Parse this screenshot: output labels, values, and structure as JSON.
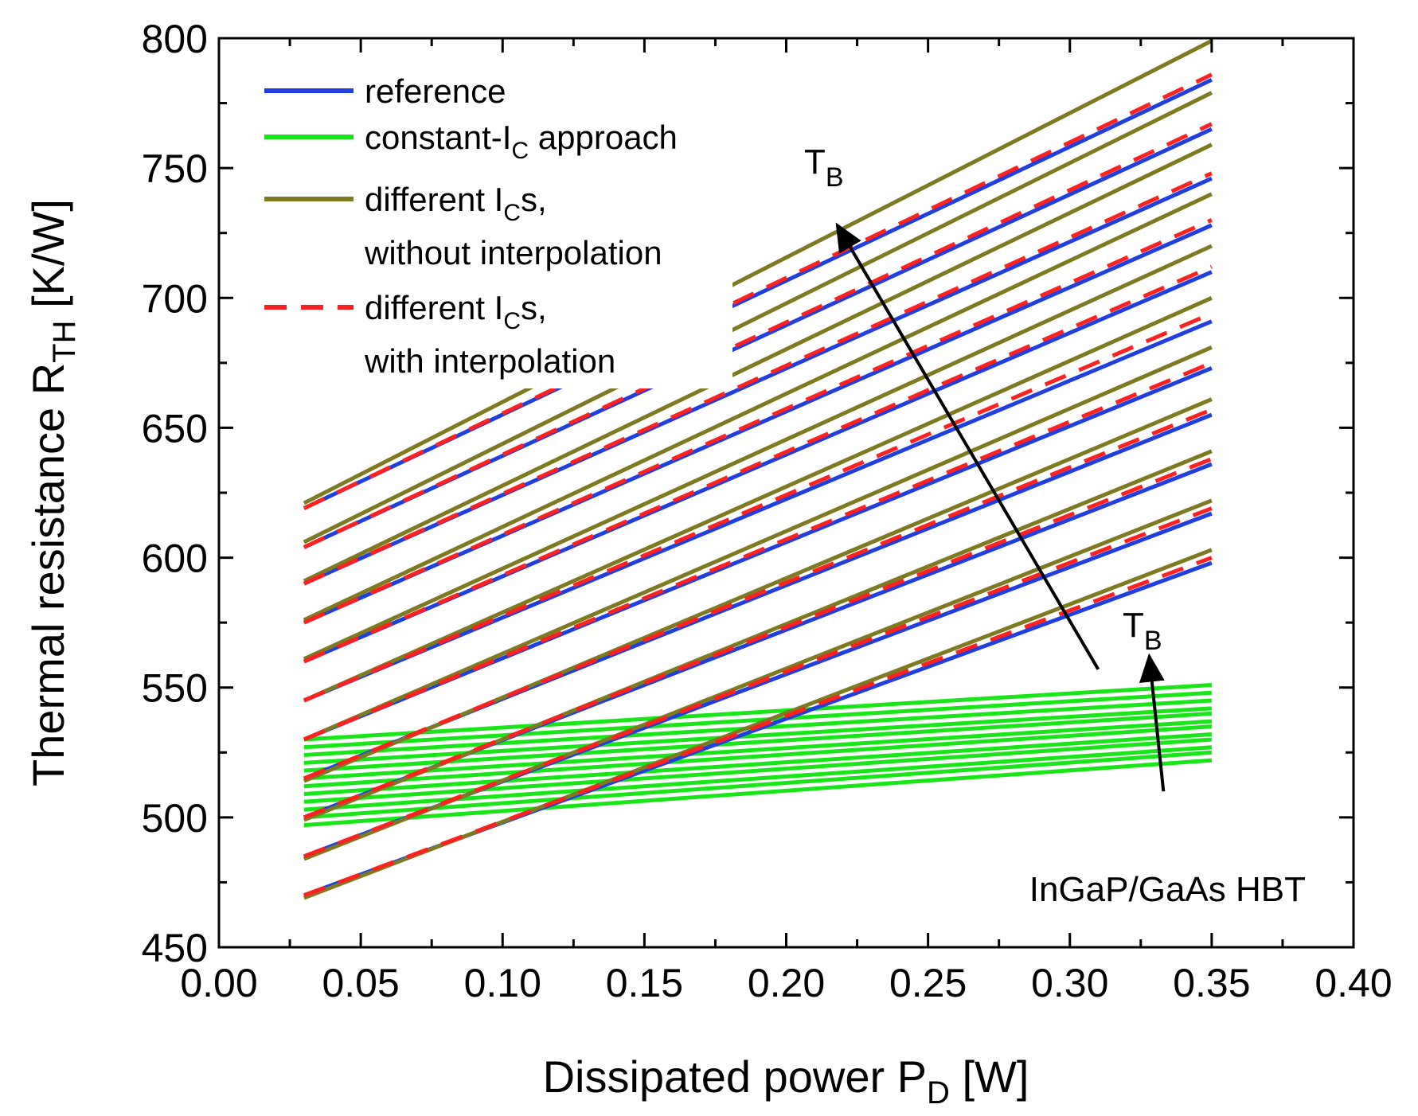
{
  "chart_data": {
    "type": "line",
    "title": "",
    "xlabel": {
      "main": "Dissipated power P",
      "sub": "D",
      "unit": " [W]"
    },
    "ylabel": {
      "main": "Thermal resistance R",
      "sub": "TH",
      "unit": " [K/W]"
    },
    "xlim": [
      0.0,
      0.4
    ],
    "ylim": [
      450,
      800
    ],
    "xticks": [
      0.0,
      0.05,
      0.1,
      0.15,
      0.2,
      0.25,
      0.3,
      0.35,
      0.4
    ],
    "xtick_labels": [
      "0.00",
      "0.05",
      "0.10",
      "0.15",
      "0.20",
      "0.25",
      "0.30",
      "0.35",
      "0.40"
    ],
    "yticks": [
      450,
      500,
      550,
      600,
      650,
      700,
      750,
      800
    ],
    "ytick_labels": [
      "450",
      "500",
      "550",
      "600",
      "650",
      "700",
      "750",
      "800"
    ],
    "grid": false,
    "x_range": [
      0.03,
      0.35
    ],
    "legend": {
      "position": "top-left",
      "entries": [
        {
          "series": "reference",
          "text": "reference",
          "sub": "",
          "after": "",
          "line2": ""
        },
        {
          "series": "constant",
          "text": "constant-I",
          "sub": "C",
          "after": " approach",
          "line2": ""
        },
        {
          "series": "no_interp",
          "text": "different I",
          "sub": "C",
          "after": "s,",
          "line2": "without interpolation"
        },
        {
          "series": "interp",
          "text": "different I",
          "sub": "C",
          "after": "s,",
          "line2": "with interpolation"
        }
      ]
    },
    "series": [
      {
        "name": "reference",
        "color": "#1f3fe0",
        "dash": "none",
        "lines": [
          [
            470,
            598
          ],
          [
            485,
            617
          ],
          [
            500,
            636
          ],
          [
            515,
            655
          ],
          [
            530,
            673
          ],
          [
            545,
            691
          ],
          [
            560,
            710
          ],
          [
            575,
            728
          ],
          [
            590,
            746
          ],
          [
            604,
            765
          ],
          [
            619,
            784
          ]
        ]
      },
      {
        "name": "constant-IC approach",
        "color": "#19e619",
        "dash": "none",
        "lines": [
          [
            497,
            522
          ],
          [
            500,
            525
          ],
          [
            503,
            527
          ],
          [
            506,
            530
          ],
          [
            509,
            532
          ],
          [
            512,
            535
          ],
          [
            515,
            537
          ],
          [
            518,
            540
          ],
          [
            521,
            542
          ],
          [
            524,
            545
          ],
          [
            527,
            548
          ],
          [
            530,
            551
          ]
        ]
      },
      {
        "name": "different ICs, without interpolation",
        "color": "#7d7a22",
        "dash": "none",
        "lines": [
          [
            469,
            603
          ],
          [
            484,
            622
          ],
          [
            499,
            641
          ],
          [
            514,
            661
          ],
          [
            530,
            681
          ],
          [
            545,
            700
          ],
          [
            561,
            720
          ],
          [
            576,
            740
          ],
          [
            591,
            759
          ],
          [
            606,
            779
          ],
          [
            621,
            799
          ]
        ]
      },
      {
        "name": "different ICs, with interpolation",
        "color": "#ff2020",
        "dash": "28,18",
        "lines": [
          [
            470,
            600
          ],
          [
            485,
            619
          ],
          [
            500,
            638
          ],
          [
            515,
            657
          ],
          [
            530,
            675
          ],
          [
            545,
            694
          ],
          [
            560,
            712
          ],
          [
            575,
            730
          ],
          [
            590,
            748
          ],
          [
            604,
            767
          ],
          [
            619,
            786
          ]
        ]
      }
    ],
    "annotations": [
      {
        "name": "tb-arrow-upper",
        "text": "T",
        "sub": "B",
        "from": [
          0.31,
          557
        ],
        "to": [
          0.218,
          728
        ]
      },
      {
        "name": "tb-arrow-lower",
        "text": "T",
        "sub": "B",
        "from": [
          0.333,
          510
        ],
        "to": [
          0.328,
          562
        ]
      },
      {
        "name": "device-label",
        "text": "InGaP/GaAs HBT"
      }
    ]
  }
}
